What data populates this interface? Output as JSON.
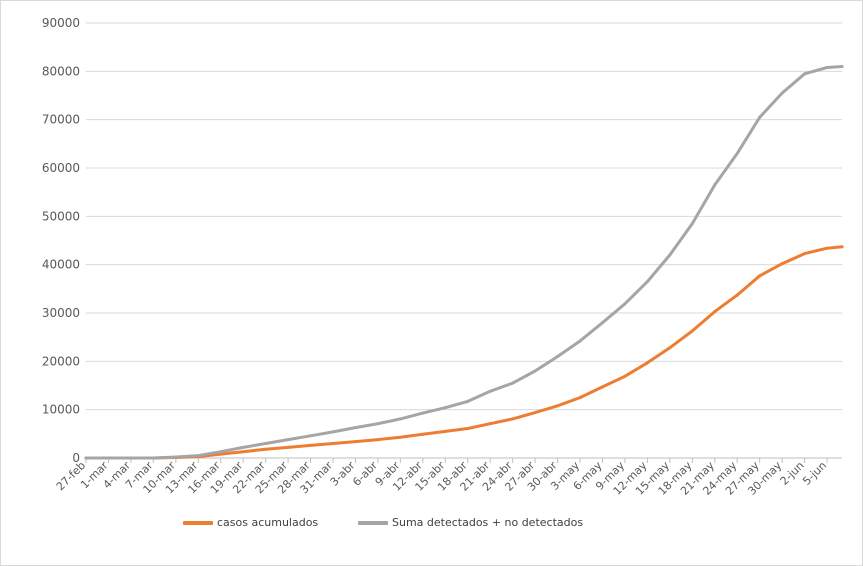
{
  "chart_data": {
    "type": "line",
    "title": "",
    "xlabel": "",
    "ylabel": "",
    "ylim": [
      0,
      90000
    ],
    "ytick_step": 10000,
    "y_ticks": [
      "0",
      "10000",
      "20000",
      "30000",
      "40000",
      "50000",
      "60000",
      "70000",
      "80000",
      "90000"
    ],
    "grid": true,
    "legend_position": "bottom",
    "x_start": "27-feb",
    "x_end": "7-jun",
    "x_ticks": [
      "27-feb",
      "1-mar",
      "4-mar",
      "7-mar",
      "10-mar",
      "13-mar",
      "16-mar",
      "19-mar",
      "22-mar",
      "25-mar",
      "28-mar",
      "31-mar",
      "3-abr",
      "6-abr",
      "9-abr",
      "12-abr",
      "15-abr",
      "18-abr",
      "21-abr",
      "24-abr",
      "27-abr",
      "30-abr",
      "3-may",
      "6-may",
      "9-may",
      "12-may",
      "15-may",
      "18-may",
      "21-may",
      "24-may",
      "27-may",
      "30-may",
      "2-jun",
      "5-jun"
    ],
    "series": [
      {
        "name": "casos acumulados",
        "color": "#ED7D31",
        "points": [
          [
            "27-feb",
            0
          ],
          [
            "1-mar",
            0
          ],
          [
            "4-mar",
            0
          ],
          [
            "7-mar",
            0
          ],
          [
            "10-mar",
            100
          ],
          [
            "13-mar",
            300
          ],
          [
            "16-mar",
            800
          ],
          [
            "19-mar",
            1300
          ],
          [
            "22-mar",
            1800
          ],
          [
            "25-mar",
            2200
          ],
          [
            "28-mar",
            2600
          ],
          [
            "31-mar",
            3000
          ],
          [
            "3-abr",
            3400
          ],
          [
            "6-abr",
            3800
          ],
          [
            "9-abr",
            4300
          ],
          [
            "12-abr",
            4900
          ],
          [
            "15-abr",
            5500
          ],
          [
            "18-abr",
            6100
          ],
          [
            "21-abr",
            7100
          ],
          [
            "24-abr",
            8100
          ],
          [
            "27-abr",
            9400
          ],
          [
            "30-abr",
            10800
          ],
          [
            "3-may",
            12500
          ],
          [
            "6-may",
            14700
          ],
          [
            "9-may",
            16900
          ],
          [
            "12-may",
            19700
          ],
          [
            "15-may",
            22800
          ],
          [
            "18-may",
            26300
          ],
          [
            "21-may",
            30300
          ],
          [
            "24-may",
            33700
          ],
          [
            "27-may",
            37700
          ],
          [
            "30-may",
            40200
          ],
          [
            "2-jun",
            42300
          ],
          [
            "5-jun",
            43400
          ],
          [
            "7-jun",
            43700
          ]
        ]
      },
      {
        "name": "Suma detectados + no detectados",
        "color": "#A5A5A5",
        "points": [
          [
            "27-feb",
            0
          ],
          [
            "1-mar",
            0
          ],
          [
            "4-mar",
            0
          ],
          [
            "7-mar",
            0
          ],
          [
            "10-mar",
            200
          ],
          [
            "13-mar",
            500
          ],
          [
            "16-mar",
            1300
          ],
          [
            "19-mar",
            2200
          ],
          [
            "22-mar",
            3000
          ],
          [
            "25-mar",
            3800
          ],
          [
            "28-mar",
            4600
          ],
          [
            "31-mar",
            5400
          ],
          [
            "3-abr",
            6300
          ],
          [
            "6-abr",
            7100
          ],
          [
            "9-abr",
            8100
          ],
          [
            "12-abr",
            9300
          ],
          [
            "15-abr",
            10400
          ],
          [
            "18-abr",
            11700
          ],
          [
            "21-abr",
            13800
          ],
          [
            "24-abr",
            15500
          ],
          [
            "27-abr",
            18000
          ],
          [
            "30-abr",
            21000
          ],
          [
            "3-may",
            24200
          ],
          [
            "6-may",
            28000
          ],
          [
            "9-may",
            31900
          ],
          [
            "12-may",
            36500
          ],
          [
            "15-may",
            42000
          ],
          [
            "18-may",
            48500
          ],
          [
            "21-may",
            56500
          ],
          [
            "24-may",
            63000
          ],
          [
            "27-may",
            70500
          ],
          [
            "30-may",
            75500
          ],
          [
            "2-jun",
            79500
          ],
          [
            "5-jun",
            80800
          ],
          [
            "7-jun",
            81000
          ]
        ]
      }
    ]
  }
}
